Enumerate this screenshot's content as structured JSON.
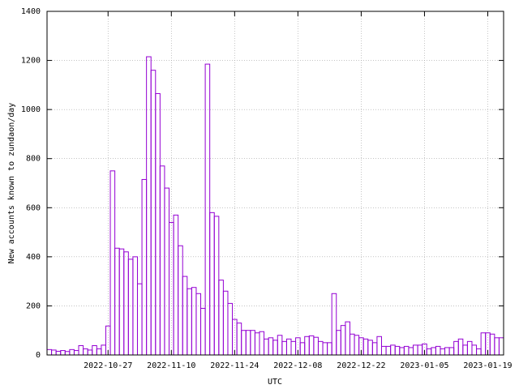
{
  "chart_data": {
    "type": "bar",
    "ylabel": "New accounts known to zundaon/day",
    "xlabel": "UTC",
    "categories": [
      null,
      null,
      null,
      null,
      null,
      null,
      null,
      null,
      null,
      null,
      null,
      null,
      null,
      "2022-10-27",
      null,
      null,
      null,
      null,
      null,
      null,
      null,
      null,
      null,
      null,
      null,
      null,
      null,
      "2022-11-10",
      null,
      null,
      null,
      null,
      null,
      null,
      null,
      null,
      null,
      null,
      null,
      null,
      null,
      "2022-11-24",
      null,
      null,
      null,
      null,
      null,
      null,
      null,
      null,
      null,
      null,
      null,
      null,
      null,
      "2022-12-08",
      null,
      null,
      null,
      null,
      null,
      null,
      null,
      null,
      null,
      null,
      null,
      null,
      null,
      "2022-12-22",
      null,
      null,
      null,
      null,
      null,
      null,
      null,
      null,
      null,
      null,
      null,
      null,
      null,
      "2023-01-05",
      null,
      null,
      null,
      null,
      null,
      null,
      null,
      null,
      null,
      null,
      null,
      null,
      null,
      "2023-01-19",
      null,
      null,
      null
    ],
    "values": [
      22,
      20,
      15,
      18,
      14,
      22,
      18,
      38,
      25,
      20,
      38,
      25,
      40,
      118,
      750,
      435,
      432,
      420,
      390,
      400,
      290,
      715,
      1215,
      1160,
      1065,
      770,
      680,
      540,
      570,
      445,
      320,
      270,
      275,
      250,
      190,
      1185,
      580,
      565,
      305,
      260,
      210,
      145,
      130,
      100,
      100,
      100,
      90,
      95,
      65,
      70,
      60,
      80,
      55,
      65,
      55,
      70,
      50,
      75,
      78,
      72,
      55,
      50,
      50,
      250,
      100,
      120,
      135,
      85,
      80,
      70,
      65,
      60,
      50,
      75,
      35,
      35,
      40,
      35,
      30,
      35,
      30,
      40,
      40,
      45,
      25,
      30,
      35,
      25,
      30,
      30,
      55,
      65,
      40,
      55,
      40,
      25,
      90,
      90,
      85,
      70,
      70
    ],
    "color": "#9400d3",
    "ylim": [
      0,
      1400
    ],
    "yticks": [
      0,
      200,
      400,
      600,
      800,
      1000,
      1200,
      1400
    ],
    "grid": true
  }
}
